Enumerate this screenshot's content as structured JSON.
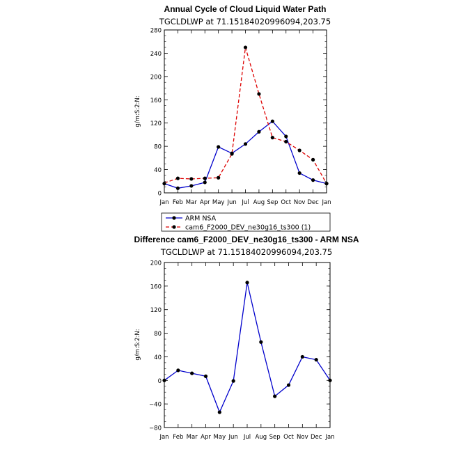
{
  "chart_data": [
    {
      "type": "line",
      "title": "Annual Cycle of Cloud Liquid Water Path",
      "subtitle": "TGCLDLWP  at  71.15184020996094,203.75",
      "xlabel": "",
      "ylabel": "g/m:S:2:N:",
      "categories": [
        "Jan",
        "Feb",
        "Mar",
        "Apr",
        "May",
        "Jun",
        "Jul",
        "Aug",
        "Sep",
        "Oct",
        "Nov",
        "Dec",
        "Jan"
      ],
      "ylim": [
        0,
        280
      ],
      "yticks": [
        0,
        40,
        80,
        120,
        160,
        200,
        240,
        280
      ],
      "ytick_labels": [
        "0",
        "40",
        "80",
        "120",
        "160",
        "200",
        "240",
        "280"
      ],
      "series": [
        {
          "name": "ARM NSA",
          "color": "#0000cc",
          "dash": "solid",
          "values": [
            16,
            8,
            12,
            18,
            79,
            68,
            84,
            105,
            123,
            97,
            34,
            22,
            16
          ],
          "markers": [
            true,
            true,
            true,
            true,
            true,
            true,
            true,
            true,
            true,
            true,
            true,
            true,
            true
          ]
        },
        {
          "name": "cam6_F2000_DEV_ne30g16_ts300 (1)",
          "color": "#dd0000",
          "dash": "dashed",
          "values": [
            17,
            25,
            24,
            25,
            26,
            67,
            250,
            170,
            95,
            88,
            73,
            57,
            16
          ],
          "markers": [
            false,
            true,
            true,
            true,
            true,
            true,
            true,
            true,
            true,
            true,
            true,
            true,
            true
          ]
        }
      ],
      "legend": [
        "ARM NSA",
        "cam6_F2000_DEV_ne30g16_ts300 (1)"
      ]
    },
    {
      "type": "line",
      "title": "Difference cam6_F2000_DEV_ne30g16_ts300 - ARM NSA",
      "subtitle": "TGCLDLWP  at  71.15184020996094,203.75",
      "xlabel": "",
      "ylabel": "g/m:S:2:N:",
      "categories": [
        "Jan",
        "Feb",
        "Mar",
        "Apr",
        "May",
        "Jun",
        "Jul",
        "Aug",
        "Sep",
        "Oct",
        "Nov",
        "Dec",
        "Jan"
      ],
      "ylim": [
        -80,
        200
      ],
      "yticks": [
        -80,
        -40,
        0,
        40,
        80,
        120,
        160,
        200
      ],
      "ytick_labels": [
        "−80",
        "−40",
        "0",
        "40",
        "80",
        "120",
        "160",
        "200"
      ],
      "series": [
        {
          "name": "Difference",
          "color": "#0000cc",
          "dash": "solid",
          "values": [
            0,
            17,
            12,
            7,
            -54,
            -1,
            166,
            65,
            -27,
            -8,
            40,
            35,
            0
          ],
          "markers": [
            true,
            true,
            true,
            true,
            true,
            true,
            true,
            true,
            true,
            true,
            true,
            true,
            true
          ]
        }
      ]
    }
  ]
}
